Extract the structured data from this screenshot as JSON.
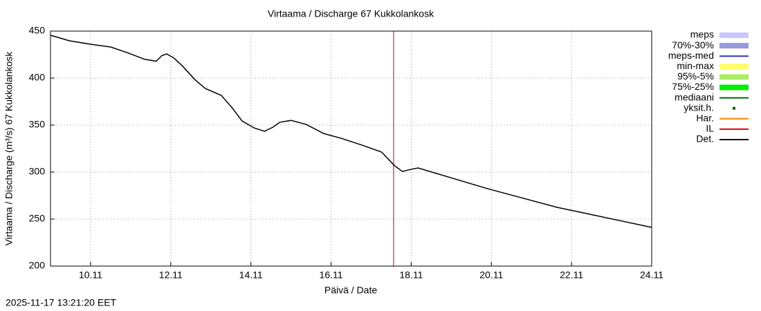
{
  "chart_data": {
    "type": "line",
    "title": "Virtaama / Discharge  67 Kukkolankosk",
    "x_label": "Päivä / Date",
    "y_label": "Virtaama / Discharge (m³/s)  67 Kukkolankosk",
    "timestamp": "2025-11-17 13:21:20 EET",
    "xlim": [
      9,
      24
    ],
    "ylim": [
      200,
      450
    ],
    "xticks": [
      {
        "value": 10,
        "label": "10.11"
      },
      {
        "value": 12,
        "label": "12.11"
      },
      {
        "value": 14,
        "label": "14.11"
      },
      {
        "value": 16,
        "label": "16.11"
      },
      {
        "value": 18,
        "label": "18.11"
      },
      {
        "value": 20,
        "label": "20.11"
      },
      {
        "value": 22,
        "label": "22.11"
      },
      {
        "value": 24,
        "label": "24.11"
      }
    ],
    "yticks": [
      200,
      250,
      300,
      350,
      400,
      450
    ],
    "grid": true,
    "now_x": 17.56,
    "now_color": "#c00000",
    "x": [
      9.0,
      9.47,
      10.0,
      10.51,
      10.95,
      11.35,
      11.64,
      11.78,
      11.9,
      12.08,
      12.29,
      12.6,
      12.86,
      13.26,
      13.52,
      13.78,
      14.08,
      14.34,
      14.55,
      14.72,
      15.0,
      15.38,
      15.82,
      16.25,
      16.77,
      17.26,
      17.59,
      17.78,
      17.99,
      18.17,
      18.69,
      19.9,
      21.64,
      22.69,
      24.0
    ],
    "series": [
      {
        "name": "meps",
        "color": "#c8c8ff",
        "style": "band"
      },
      {
        "name": "70%-30%",
        "color": "#9999dd",
        "style": "band"
      },
      {
        "name": "meps-med",
        "color": "#3333cc",
        "style": "line"
      },
      {
        "name": "min-max",
        "color": "#ffff66",
        "style": "band"
      },
      {
        "name": "95%-5%",
        "color": "#aaee66",
        "style": "band"
      },
      {
        "name": "75%-25%",
        "color": "#00ee00",
        "style": "band"
      },
      {
        "name": "mediaani",
        "color": "#006600",
        "style": "line"
      },
      {
        "name": "yksit.h.",
        "color": "#006600",
        "style": "dot"
      },
      {
        "name": "Har.",
        "color": "#ff8000",
        "style": "line"
      },
      {
        "name": "IL",
        "color": "#dd0000",
        "style": "line"
      },
      {
        "name": "Det.",
        "color": "#000000",
        "style": "line",
        "values": [
          445.6,
          439.7,
          436,
          433,
          426.5,
          420,
          418,
          424,
          425.7,
          421.3,
          413,
          398.5,
          389,
          381.6,
          369,
          354.4,
          347,
          343.4,
          347.8,
          353,
          355,
          350.7,
          341,
          336,
          328.7,
          321.3,
          306.6,
          300.7,
          302.9,
          304.4,
          297.8,
          282.4,
          262.5,
          253,
          241.2
        ]
      }
    ]
  }
}
